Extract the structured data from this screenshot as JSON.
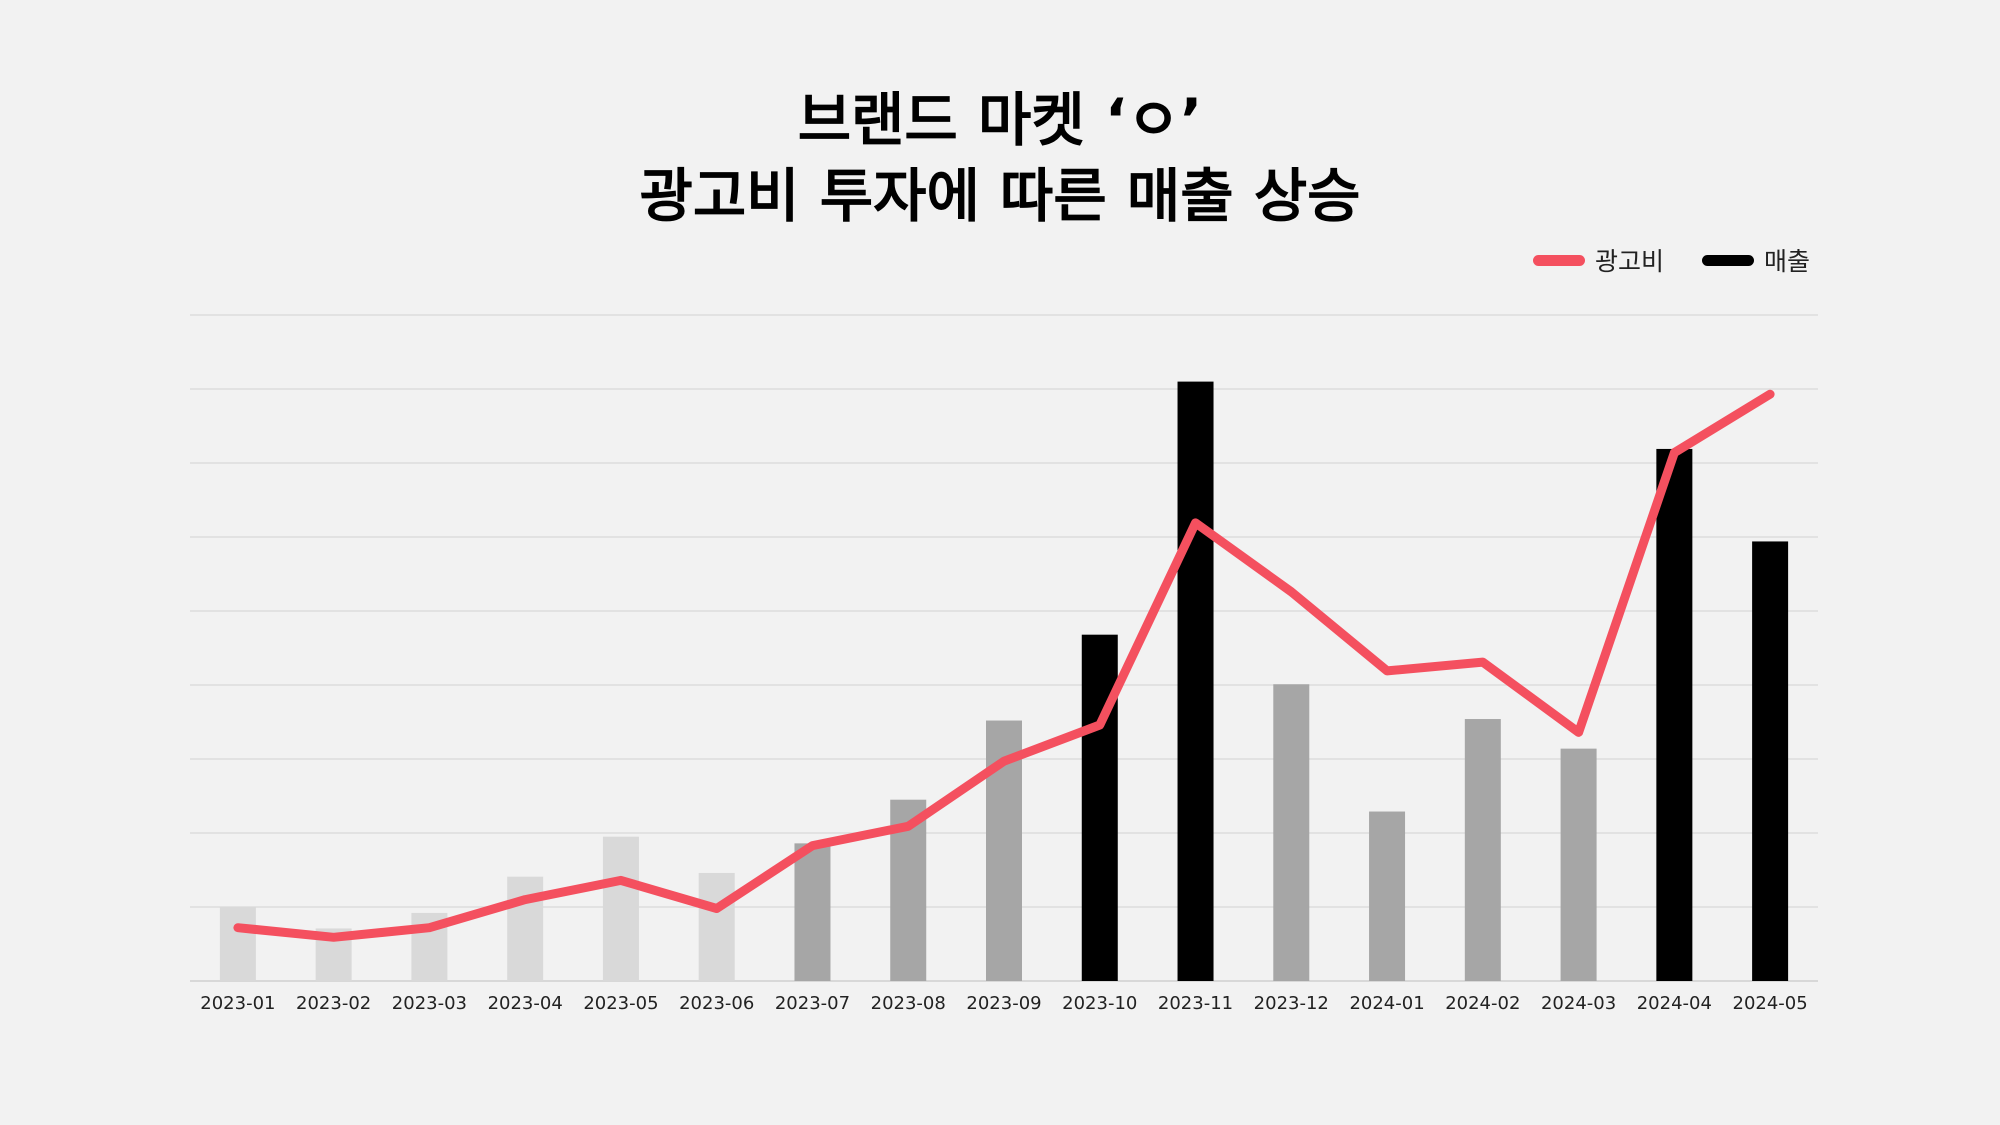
{
  "chart_data": {
    "type": "bar",
    "title_lines": [
      "브랜드 마켓 ‘ㅇ’",
      "광고비 투자에 따른 매출 상승"
    ],
    "categories": [
      "2023-01",
      "2023-02",
      "2023-03",
      "2023-04",
      "2023-05",
      "2023-06",
      "2023-07",
      "2023-08",
      "2023-09",
      "2023-10",
      "2023-11",
      "2023-12",
      "2024-01",
      "2024-02",
      "2024-03",
      "2024-04",
      "2024-05"
    ],
    "series": [
      {
        "name": "광고비",
        "type": "line",
        "color": "#f4505f",
        "values": [
          7.2,
          5.9,
          7.2,
          11.0,
          13.6,
          9.8,
          18.3,
          20.9,
          29.7,
          34.6,
          61.9,
          52.6,
          41.9,
          43.1,
          33.6,
          71.4,
          79.3
        ]
      },
      {
        "name": "매출",
        "type": "bar",
        "color": "#000000",
        "values": [
          10.0,
          7.1,
          9.2,
          14.1,
          19.5,
          14.6,
          18.6,
          24.5,
          35.2,
          46.8,
          81.0,
          40.1,
          22.9,
          35.4,
          31.4,
          71.9,
          59.4
        ],
        "bar_colors": [
          "#d9d9d9",
          "#d9d9d9",
          "#d9d9d9",
          "#d9d9d9",
          "#d9d9d9",
          "#d9d9d9",
          "#a6a6a6",
          "#a6a6a6",
          "#a6a6a6",
          "#000000",
          "#000000",
          "#a6a6a6",
          "#a6a6a6",
          "#a6a6a6",
          "#a6a6a6",
          "#000000",
          "#000000"
        ]
      }
    ],
    "ylim": [
      0,
      90
    ],
    "gridlines": [
      10,
      20,
      30,
      40,
      50,
      60,
      70,
      80,
      90
    ],
    "grid": "horizontal",
    "legend_position": "top-right",
    "xlabel": "",
    "ylabel": ""
  }
}
